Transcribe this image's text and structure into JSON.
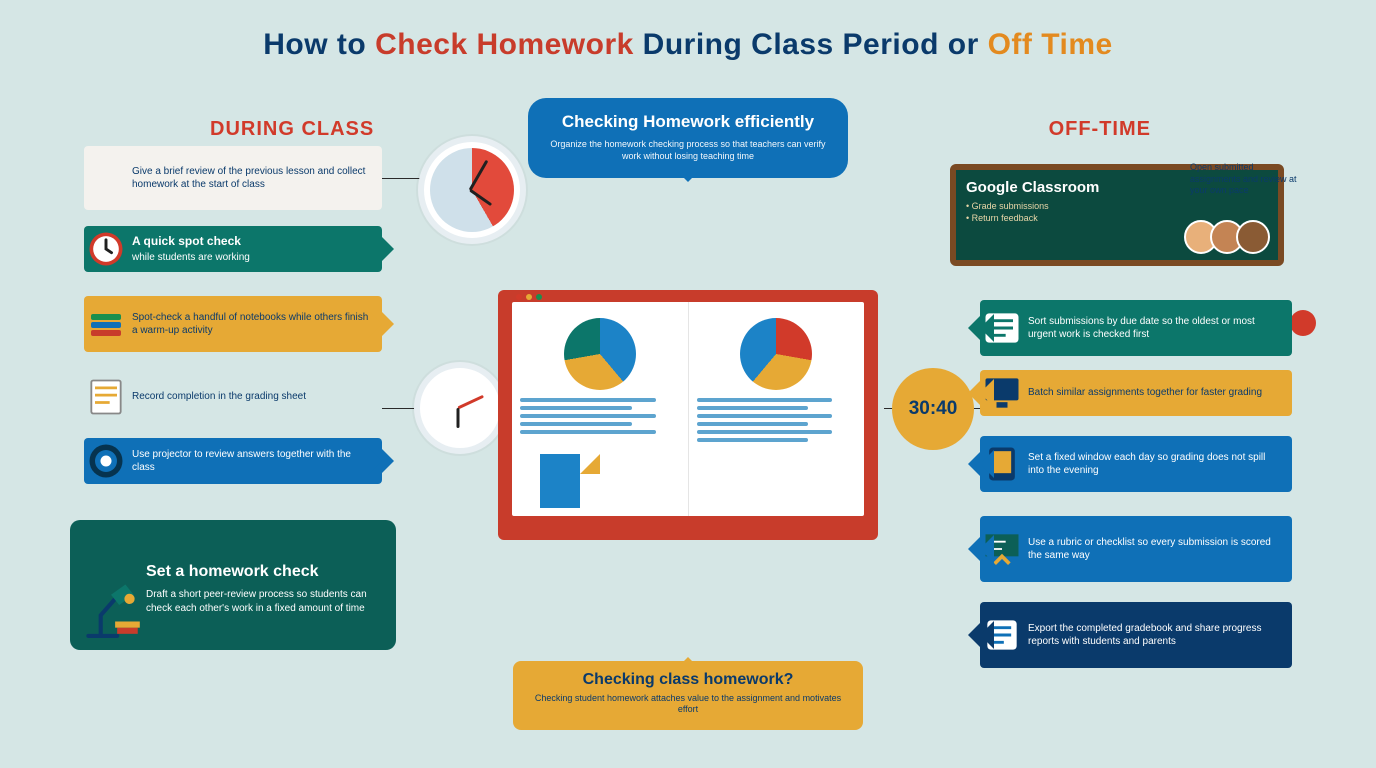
{
  "colors": {
    "bg": "#d5e6e5",
    "navy": "#0a3a6b",
    "blue": "#0f70b7",
    "red": "#d13a2a",
    "brick": "#c83c2b",
    "teal": "#0c766a",
    "tealDark": "#0c5f57",
    "amber": "#e6a935",
    "orange": "#e38a1f",
    "green": "#1a8f4e"
  },
  "title": {
    "p1": "How to ",
    "p2": "Check Homework ",
    "p3": "During Class Period ",
    "p4": "or ",
    "p5": "Off Time"
  },
  "headers": {
    "left": "DURING CLASS",
    "right": "OFF-TIME"
  },
  "speech": {
    "title": "Checking Homework efficiently",
    "sub": "Organize the homework checking process so that teachers can verify work without losing teaching time"
  },
  "monitor": {
    "dot_colors": [
      "#d13a2a",
      "#e6a935",
      "#1a8f4e"
    ],
    "pie_left": {
      "segments": [
        [
          "#1c83c7",
          140
        ],
        [
          "#e6a935",
          120
        ],
        [
          "#0c766a",
          100
        ]
      ]
    },
    "pie_right": {
      "segments": [
        [
          "#d13a2a",
          100
        ],
        [
          "#e6a935",
          120
        ],
        [
          "#1c83c7",
          140
        ]
      ]
    }
  },
  "bottom": {
    "title": "Checking class homework?",
    "sub": "Checking student homework attaches value to the assignment and motivates effort"
  },
  "left_tips": [
    {
      "bg": "#f4f2ee",
      "fg": "#0a3a6b",
      "title": "",
      "text": "Give a brief review of the previous lesson and collect homework at the start of class",
      "icon": ""
    },
    {
      "bg": "#0c766a",
      "fg": "#ffffff",
      "title": "A quick spot check",
      "text": "while students are working",
      "icon": "clock"
    },
    {
      "bg": "#e6a935",
      "fg": "#0a3a6b",
      "title": "",
      "text": "Spot-check a handful of notebooks while others finish a warm-up activity",
      "icon": "books"
    },
    {
      "bg": "#d5e6e5",
      "fg": "#0a3a6b",
      "title": "",
      "text": "Record completion in the grading sheet",
      "icon": "sheet"
    },
    {
      "bg": "#0f70b7",
      "fg": "#ffffff",
      "title": "",
      "text": "Use projector to review answers together with the class",
      "icon": "target"
    }
  ],
  "left_big": {
    "bg": "#0c5f57",
    "title": "Set a homework check",
    "text": "Draft a short peer-review process so students can check each other's work in a fixed amount of time"
  },
  "right_panel": {
    "title": "Google Classroom",
    "sub1": "• Grade submissions",
    "sub2": "• Return feedback",
    "people": [
      "#e8b07a",
      "#c48454",
      "#8a5b34"
    ],
    "side_note": "Open submitted assignments and review at your own pace"
  },
  "right_tips": [
    {
      "bg": "#0c766a",
      "fg": "#ffffff",
      "text": "Sort submissions by due date so the oldest or most urgent work is checked first",
      "icon": "list"
    },
    {
      "bg": "#e6a935",
      "fg": "#0a3a6b",
      "text": "Batch similar assignments together for faster grading",
      "icon": "monitor"
    },
    {
      "bg": "#0f70b7",
      "fg": "#ffffff",
      "text": "Set a fixed window each day so grading does not spill into the evening",
      "icon": "tablet"
    },
    {
      "bg": "#0f70b7",
      "fg": "#ffffff",
      "text": "Use a rubric or checklist so every submission is scored the same way",
      "icon": "board"
    },
    {
      "bg": "#0a3a6b",
      "fg": "#ffffff",
      "text": "Export the completed gradebook and share progress reports with students and parents",
      "icon": "export"
    }
  ],
  "timer": "30:40"
}
